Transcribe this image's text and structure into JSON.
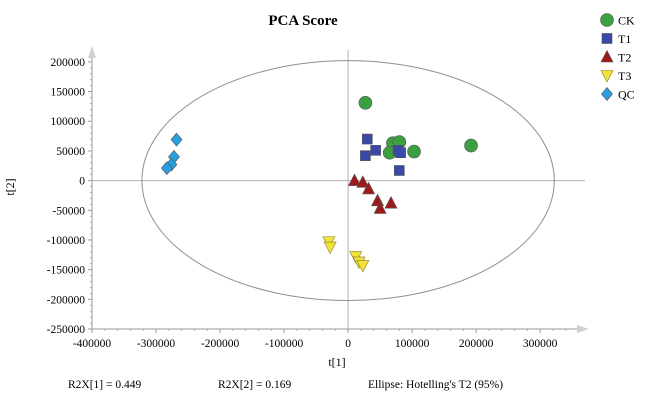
{
  "chart_data": {
    "type": "scatter",
    "title": "PCA Score",
    "xlabel": "t[1]",
    "ylabel": "t[2]",
    "xlim": [
      -400000,
      370000
    ],
    "ylim": [
      -250000,
      220000
    ],
    "x_ticks": [
      -400000,
      -300000,
      -200000,
      -100000,
      0,
      100000,
      200000,
      300000
    ],
    "y_ticks": [
      -250000,
      -200000,
      -150000,
      -100000,
      -50000,
      0,
      50000,
      100000,
      150000,
      200000
    ],
    "x_tick_labels": [
      "-400000",
      "-300000",
      "-200000",
      "-100000",
      "0",
      "100000",
      "200000",
      "300000"
    ],
    "y_tick_labels": [
      "-250000",
      "-200000",
      "-150000",
      "-100000",
      "-50000",
      "0",
      "50000",
      "100000",
      "150000",
      "200000"
    ],
    "grid": false,
    "legend_position": "top-right, outside plot",
    "ellipse": {
      "center": [
        0,
        0
      ],
      "semi_axis_x": 322000,
      "semi_axis_y": 202000
    },
    "series": [
      {
        "name": "CK",
        "marker": "circle",
        "color": "#3aa040",
        "points": [
          [
            27000,
            131000
          ],
          [
            70000,
            63000
          ],
          [
            80000,
            65000
          ],
          [
            65000,
            47000
          ],
          [
            103000,
            49000
          ],
          [
            192000,
            59000
          ]
        ]
      },
      {
        "name": "T1",
        "marker": "square",
        "color": "#3a48a8",
        "points": [
          [
            30000,
            70000
          ],
          [
            27000,
            42000
          ],
          [
            43000,
            51000
          ],
          [
            78000,
            51000
          ],
          [
            82000,
            47000
          ],
          [
            80000,
            17000
          ]
        ]
      },
      {
        "name": "T2",
        "marker": "triangle-up",
        "color": "#9c1a1a",
        "points": [
          [
            10000,
            0
          ],
          [
            23000,
            -3000
          ],
          [
            32000,
            -14000
          ],
          [
            46000,
            -34000
          ],
          [
            50000,
            -47000
          ],
          [
            67000,
            -38000
          ]
        ]
      },
      {
        "name": "T3",
        "marker": "triangle-down",
        "color": "#f0e23a",
        "points": [
          [
            -30000,
            -103000
          ],
          [
            -28000,
            -112000
          ],
          [
            12000,
            -128000
          ],
          [
            17000,
            -137000
          ],
          [
            23000,
            -143000
          ]
        ]
      },
      {
        "name": "QC",
        "marker": "diamond",
        "color": "#2a9fe0",
        "points": [
          [
            -268000,
            69000
          ],
          [
            -272000,
            40000
          ],
          [
            -276000,
            27000
          ],
          [
            -283000,
            21000
          ]
        ]
      }
    ]
  },
  "footer": {
    "r2x1": "R2X[1] = 0.449",
    "r2x2": "R2X[2] = 0.169",
    "ellipse_note": "Ellipse: Hotelling's T2 (95%)"
  }
}
